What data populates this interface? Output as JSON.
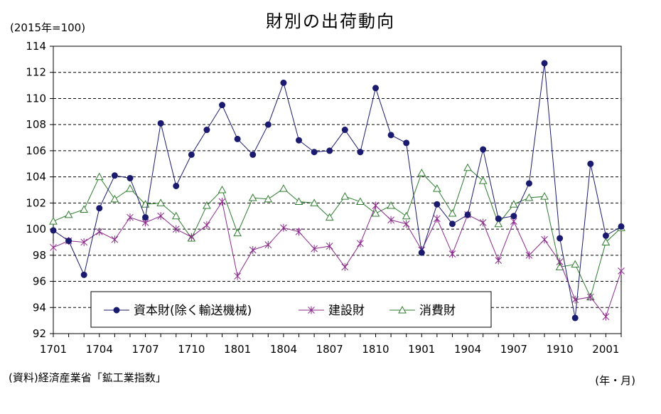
{
  "chart_data": {
    "type": "line",
    "title": "財別の出荷動向",
    "unit_label": "(2015年=100)",
    "source_note": "(資料)経済産業省「鉱工業指数」",
    "x_unit_label": "(年・月)",
    "ylim": [
      92,
      114
    ],
    "y_ticks": [
      92,
      94,
      96,
      98,
      100,
      102,
      104,
      106,
      108,
      110,
      112,
      114
    ],
    "grid": "horizontal-dashed",
    "legend_placement": "bottom-left",
    "x": [
      "1701",
      "1702",
      "1703",
      "1704",
      "1705",
      "1706",
      "1707",
      "1708",
      "1709",
      "1710",
      "1711",
      "1712",
      "1801",
      "1802",
      "1803",
      "1804",
      "1805",
      "1806",
      "1807",
      "1808",
      "1809",
      "1810",
      "1811",
      "1812",
      "1901",
      "1902",
      "1903",
      "1904",
      "1905",
      "1906",
      "1907",
      "1908",
      "1909",
      "1910",
      "1911",
      "1912",
      "2001",
      "2002"
    ],
    "x_tick_labels": [
      "1701",
      "1704",
      "1707",
      "1710",
      "1801",
      "1804",
      "1807",
      "1810",
      "1901",
      "1904",
      "1907",
      "1910",
      "2001"
    ],
    "series": [
      {
        "name": "資本財(除く輸送機械)",
        "color": "#1a1a6e",
        "marker": "circle",
        "values": [
          99.9,
          99.1,
          96.5,
          101.6,
          104.1,
          103.9,
          100.9,
          108.1,
          103.3,
          105.7,
          107.6,
          109.5,
          106.9,
          105.7,
          108.0,
          111.2,
          106.8,
          105.9,
          106.0,
          107.6,
          105.9,
          110.8,
          107.2,
          106.6,
          98.2,
          101.9,
          100.4,
          101.1,
          106.1,
          100.8,
          101.0,
          103.5,
          112.7,
          99.3,
          93.2,
          105.0,
          99.5,
          100.2
        ]
      },
      {
        "name": "建設財",
        "color": "#8b2a8b",
        "marker": "star",
        "values": [
          98.6,
          99.1,
          99.0,
          99.8,
          99.2,
          100.9,
          100.5,
          101.0,
          100.0,
          99.4,
          100.3,
          102.1,
          96.4,
          98.4,
          98.8,
          100.1,
          99.8,
          98.5,
          98.7,
          97.1,
          98.9,
          101.8,
          100.7,
          100.4,
          98.4,
          100.8,
          98.1,
          101.1,
          100.5,
          97.6,
          100.6,
          98.0,
          99.2,
          97.5,
          94.6,
          94.8,
          93.3,
          96.8
        ]
      },
      {
        "name": "消費財",
        "color": "#2e7d2e",
        "marker": "triangle",
        "values": [
          100.6,
          101.1,
          101.5,
          104.0,
          102.3,
          103.1,
          101.9,
          102.0,
          101.0,
          99.3,
          101.8,
          103.0,
          99.7,
          102.4,
          102.3,
          103.1,
          102.1,
          102.0,
          100.9,
          102.5,
          102.1,
          101.2,
          101.8,
          101.0,
          104.3,
          103.1,
          101.2,
          104.7,
          103.7,
          100.4,
          101.9,
          102.4,
          102.5,
          97.1,
          97.3,
          94.8,
          99.0,
          100.1
        ]
      }
    ]
  }
}
